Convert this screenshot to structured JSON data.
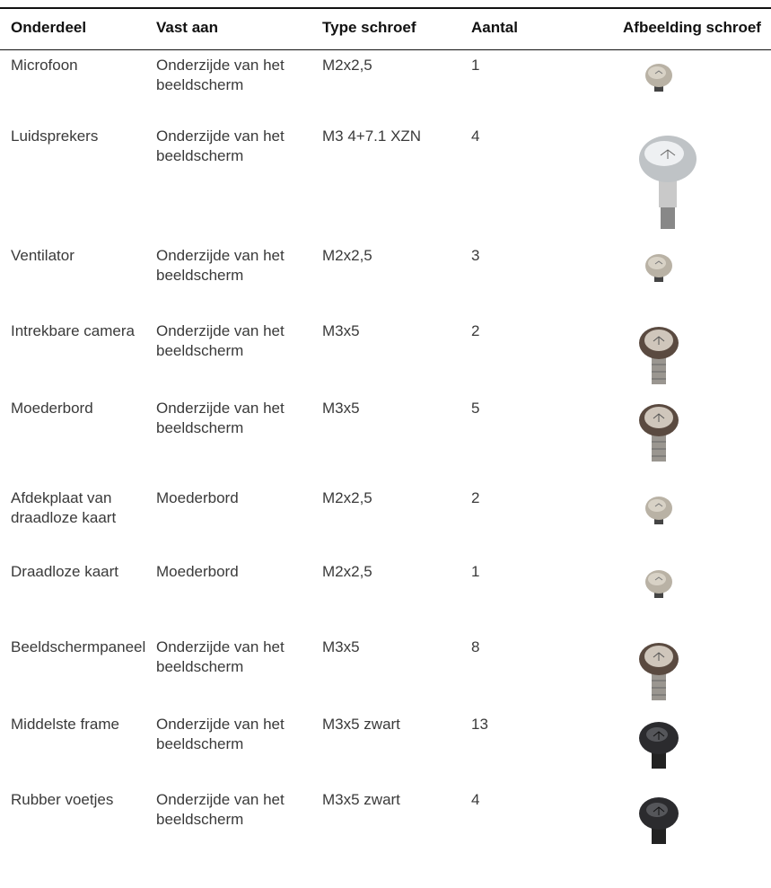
{
  "table": {
    "header": [
      "Onderdeel",
      "Vast aan",
      "Type schroef",
      "Aantal",
      "Afbeelding schroef"
    ],
    "rows": [
      [
        "Microfoon",
        "Onderzijde van het beeldscherm",
        "M2x2,5",
        "1"
      ],
      [
        "Luidsprekers",
        "Onderzijde van het beeldscherm",
        "M3 4+7.1 XZN",
        "4"
      ],
      [
        "Ventilator",
        "Onderzijde van het beeldscherm",
        "M2x2,5",
        "3"
      ],
      [
        "Intrekbare camera",
        "Onderzijde van het beeldscherm",
        "M3x5",
        "2"
      ],
      [
        "Moederbord",
        "Onderzijde van het beeldscherm",
        "M3x5",
        "5"
      ],
      [
        "Afdekplaat van draadloze kaart",
        "Moederbord",
        "M2x2,5",
        "2"
      ],
      [
        "Draadloze kaart",
        "Moederbord",
        "M2x2,5",
        "1"
      ],
      [
        "Beeldschermpaneel",
        "Onderzijde van het beeldscherm",
        "M3x5",
        "8"
      ],
      [
        "Middelste frame",
        "Onderzijde van het beeldscherm",
        "M3x5 zwart",
        "13"
      ],
      [
        "Rubber voetjes",
        "Onderzijde van het beeldscherm",
        "M3x5 zwart",
        "4"
      ]
    ]
  }
}
